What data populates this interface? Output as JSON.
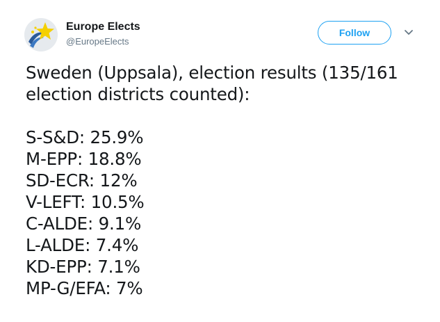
{
  "author": {
    "name": "Europe Elects",
    "handle": "@EuropeElects",
    "avatar_icon": "europe-elects-logo-icon"
  },
  "actions": {
    "follow_label": "Follow",
    "menu_icon": "chevron-down-icon"
  },
  "tweet": {
    "intro_lines": [
      "Sweden (Uppsala), election results (135/161",
      "election districts counted):"
    ],
    "results": [
      "S-S&D: 25.9%",
      "M-EPP: 18.8%",
      "SD-ECR: 12%",
      "V-LEFT: 10.5%",
      "C-ALDE: 9.1%",
      "L-ALDE: 7.4%",
      "KD-EPP: 7.1%",
      "MP-G/EFA: 7%"
    ]
  },
  "colors": {
    "accent": "#1da1f2",
    "text": "#14171a",
    "secondary_text": "#657786"
  }
}
